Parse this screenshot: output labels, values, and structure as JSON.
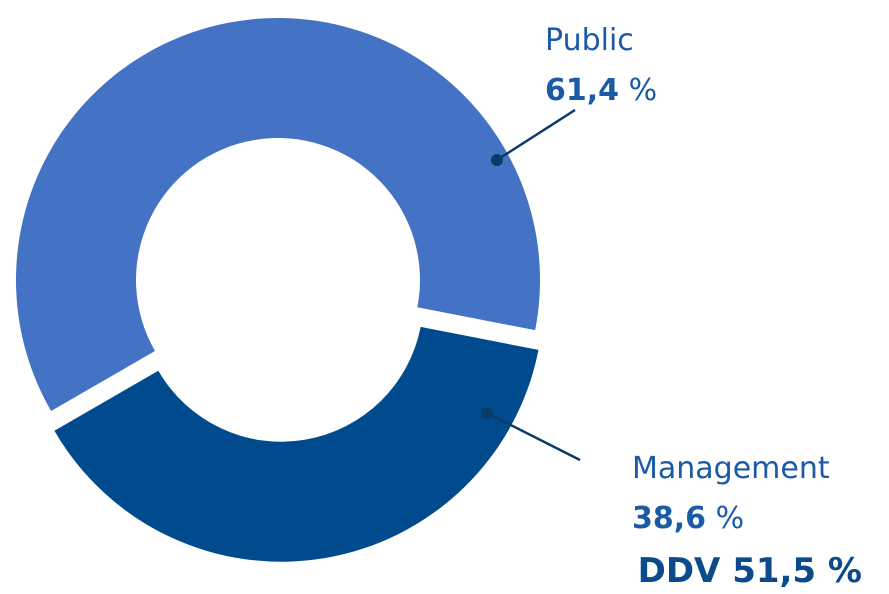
{
  "chart_data": {
    "type": "donut",
    "categories": [
      "Public",
      "Management"
    ],
    "values": [
      61.4,
      38.6
    ],
    "value_labels": [
      "61,4",
      "38,6"
    ],
    "value_unit": "%",
    "colors": [
      "#4472c4",
      "#004b8d"
    ],
    "annotation": "DDV 51,5 %"
  }
}
